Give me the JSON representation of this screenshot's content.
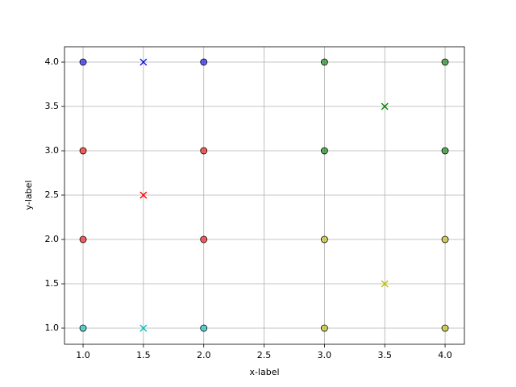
{
  "chart_data": {
    "type": "scatter",
    "xlabel": "x-label",
    "ylabel": "y-label",
    "xlim": [
      0.846,
      4.16
    ],
    "ylim": [
      0.818,
      4.173
    ],
    "xticks": [
      {
        "value": 1,
        "label": "1.0"
      },
      {
        "value": 1.5,
        "label": "1.5"
      },
      {
        "value": 2,
        "label": "2.0"
      },
      {
        "value": 2.5,
        "label": "2.5"
      },
      {
        "value": 3,
        "label": "3.0"
      },
      {
        "value": 3.5,
        "label": "3.5"
      },
      {
        "value": 4,
        "label": "4.0"
      }
    ],
    "yticks": [
      {
        "value": 1,
        "label": "1.0"
      },
      {
        "value": 1.5,
        "label": "1.5"
      },
      {
        "value": 2,
        "label": "2.0"
      },
      {
        "value": 2.5,
        "label": "2.5"
      },
      {
        "value": 3,
        "label": "3.0"
      },
      {
        "value": 3.5,
        "label": "3.5"
      },
      {
        "value": 4,
        "label": "4.0"
      }
    ],
    "grid": true,
    "series": [
      {
        "color": "#0000ff",
        "marker": "o",
        "x": [
          1,
          2
        ],
        "y": [
          4,
          4
        ]
      },
      {
        "color": "#0000ff",
        "marker": "x",
        "x": [
          1.5
        ],
        "y": [
          4
        ]
      },
      {
        "color": "#ff0000",
        "marker": "o",
        "x": [
          1,
          1,
          2,
          2
        ],
        "y": [
          3,
          2,
          3,
          2
        ]
      },
      {
        "color": "#ff0000",
        "marker": "x",
        "x": [
          1.5
        ],
        "y": [
          2.5
        ]
      },
      {
        "color": "#00bfbf",
        "marker": "o",
        "x": [
          1,
          2
        ],
        "y": [
          1,
          1
        ]
      },
      {
        "color": "#00bfbf",
        "marker": "x",
        "x": [
          1.5
        ],
        "y": [
          1
        ]
      },
      {
        "color": "#008000",
        "marker": "o",
        "x": [
          3,
          4,
          3,
          4
        ],
        "y": [
          4,
          4,
          3,
          3
        ]
      },
      {
        "color": "#008000",
        "marker": "x",
        "x": [
          3.5
        ],
        "y": [
          3.5
        ]
      },
      {
        "color": "#bfbf00",
        "marker": "o",
        "x": [
          3,
          4,
          3,
          4
        ],
        "y": [
          2,
          2,
          1,
          1
        ]
      },
      {
        "color": "#bfbf00",
        "marker": "x",
        "x": [
          3.5
        ],
        "y": [
          1.5
        ]
      }
    ]
  }
}
